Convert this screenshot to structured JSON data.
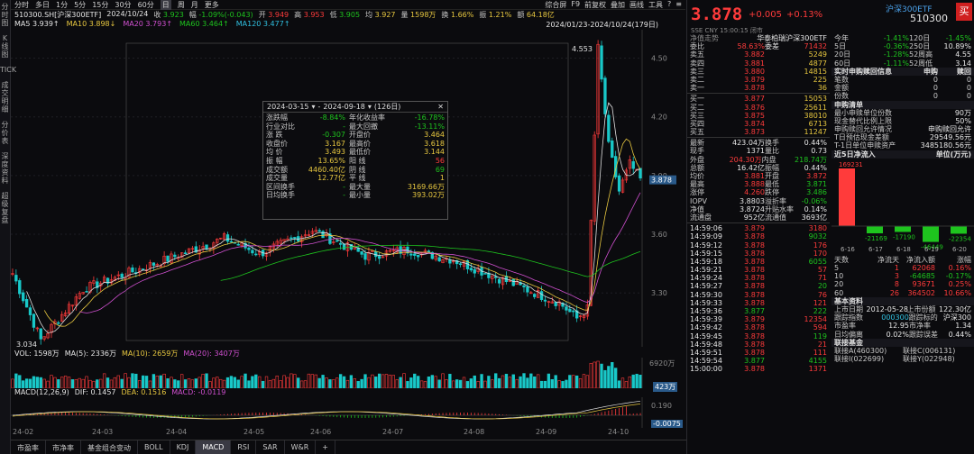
{
  "left_sidebar": [
    "分时图",
    "K线图",
    "TICK",
    "成交明细",
    "分价表",
    "深度资料",
    "超级复盘"
  ],
  "topbar": {
    "items": [
      "分时",
      "多日",
      "1分",
      "5分",
      "15分",
      "30分",
      "60分",
      "日",
      "周",
      "月",
      "更多"
    ],
    "active": "日",
    "right": [
      "综合屏",
      "F9",
      "前复权",
      "叠加",
      "画线",
      "工具",
      "?",
      "≡"
    ]
  },
  "info": {
    "code": "510300.SH[沪深300ETF]",
    "date": "2024/10/24",
    "open_lbl": "收",
    "open": "3.923",
    "chg_lbl": "幅",
    "chg": "-1.09%(-0.043)",
    "high_lbl": "开",
    "o": "3.949",
    "hi_lbl": "高",
    "hi": "3.953",
    "lo_lbl": "低",
    "lo": "3.905",
    "avg_lbl": "均",
    "avg": "3.927",
    "vol_lbl": "量",
    "vol": "1598万",
    "turn_lbl": "换",
    "turn": "1.66%",
    "amp_lbl": "振",
    "amp": "1.21%",
    "amt_lbl": "额",
    "amt": "64.18亿"
  },
  "ma": {
    "ma5": "MA5 3.939↑",
    "ma10": "MA10 3.898↓",
    "ma20": "MA20 3.793↑",
    "ma60": "MA60 3.464↑",
    "ma120": "MA120 3.477↑",
    "range": "2024/01/23-2024/10/24(179日)"
  },
  "price_axis": [
    "4.50",
    "4.20",
    "3.90",
    "3.60",
    "3.30"
  ],
  "last_price_tag": "3.878",
  "hi_label": "4.553",
  "lo_label": "3.034",
  "popup": {
    "start": "2024-03-15",
    "end": "2024-09-18",
    "days": "(126日)",
    "close": "✕",
    "rows": [
      [
        "涨跌幅",
        "-8.84%",
        "年化收益率",
        "-16.78%"
      ],
      [
        "行业对比",
        "-",
        "最大回撤",
        "-13.11%"
      ],
      [
        "涨 跌",
        "-0.307",
        "开盘价",
        "3.464"
      ],
      [
        "收盘价",
        "3.167",
        "最高价",
        "3.618"
      ],
      [
        "均 价",
        "3.493",
        "最低价",
        "3.144"
      ],
      [
        "振 幅",
        "13.65%",
        "阳 线",
        "56"
      ],
      [
        "成交额",
        "4460.40亿",
        "阴 线",
        "69"
      ],
      [
        "成交量",
        "12.77亿",
        "平 线",
        "1"
      ],
      [
        "区间换手",
        "-",
        "最大量",
        "3169.66万"
      ],
      [
        "日均换手",
        "-",
        "最小量",
        "393.02万"
      ]
    ]
  },
  "vol": {
    "label": "VOL: 1598万",
    "ma5": "MA(5): 2336万",
    "ma10": "MA(10): 2659万",
    "ma20": "MA(20): 3407万",
    "axis_top": "6920万",
    "axis_last": "423万"
  },
  "macd": {
    "label": "MACD(12,26,9)",
    "dif": "DIF: 0.1457",
    "dea": "DEA: 0.1516",
    "macd": "MACD: -0.0119",
    "axis_top": "0.190",
    "axis_last": "-0.0075"
  },
  "dates": [
    "24-02",
    "24-03",
    "24-04",
    "24-05",
    "24-06",
    "24-07",
    "24-08",
    "24-09",
    "24-10"
  ],
  "bottom_tabs": [
    "市盈率",
    "市净率",
    "基金组合变动",
    "BOLL",
    "KDJ",
    "MACD",
    "RSI",
    "SAR",
    "W&R",
    "+"
  ],
  "bottom_active": "MACD",
  "quote": {
    "price": "3.878",
    "chg": "+0.005",
    "pct": "+0.13%",
    "name": "沪深300ETF",
    "code": "510300",
    "buy_btn": "买",
    "sub": "SSE CNY 15:00:15 闭市"
  },
  "fund": {
    "label": "净值走势",
    "name": "华泰柏瑞沪深300ETF"
  },
  "webi": [
    [
      "委比",
      "58.63%",
      "委差",
      "71432"
    ]
  ],
  "asks": [
    [
      "卖五",
      "3.882",
      "5249"
    ],
    [
      "卖四",
      "3.881",
      "4877"
    ],
    [
      "卖三",
      "3.880",
      "14815"
    ],
    [
      "卖二",
      "3.879",
      "225"
    ],
    [
      "卖一",
      "3.878",
      "36"
    ]
  ],
  "bids": [
    [
      "买一",
      "3.877",
      "15053"
    ],
    [
      "买二",
      "3.876",
      "25611"
    ],
    [
      "买三",
      "3.875",
      "38010"
    ],
    [
      "买四",
      "3.874",
      "6713"
    ],
    [
      "买五",
      "3.873",
      "11247"
    ]
  ],
  "stats": [
    [
      "最新",
      "423.04万",
      "换手",
      "0.44%"
    ],
    [
      "现手",
      "1371",
      "量比",
      "0.73"
    ],
    [
      "外盘",
      "204.30万",
      "内盘",
      "218.74万"
    ],
    [
      "总额",
      "16.42亿",
      "振幅",
      "0.44%"
    ],
    [
      "均价",
      "3.881",
      "开盘",
      "3.872"
    ],
    [
      "最高",
      "3.888",
      "最低",
      "3.871"
    ],
    [
      "涨停",
      "4.260",
      "跌停",
      "3.486"
    ],
    [
      "IOPV",
      "3.8803",
      "溢折率",
      "-0.06%"
    ],
    [
      "净值",
      "3.8724",
      "升贴水率",
      "0.14%"
    ],
    [
      "流通盘",
      "952亿",
      "流通值",
      "3693亿"
    ]
  ],
  "ticks": [
    [
      "14:59:06",
      "3.879",
      "3180"
    ],
    [
      "14:59:09",
      "3.878",
      "9032"
    ],
    [
      "14:59:12",
      "3.878",
      "176"
    ],
    [
      "14:59:15",
      "3.878",
      "170"
    ],
    [
      "14:59:18",
      "3.878",
      "6055"
    ],
    [
      "14:59:21",
      "3.878",
      "57"
    ],
    [
      "14:59:24",
      "3.878",
      "71"
    ],
    [
      "14:59:27",
      "3.878",
      "20"
    ],
    [
      "14:59:30",
      "3.878",
      "76"
    ],
    [
      "14:59:33",
      "3.878",
      "121"
    ],
    [
      "14:59:36",
      "3.877",
      "222"
    ],
    [
      "14:59:39",
      "3.879",
      "12354"
    ],
    [
      "14:59:42",
      "3.878",
      "594"
    ],
    [
      "14:59:45",
      "3.878",
      "119"
    ],
    [
      "14:59:48",
      "3.878",
      "21"
    ],
    [
      "14:59:51",
      "3.878",
      "111"
    ],
    [
      "14:59:54",
      "3.877",
      "4155"
    ],
    [
      "15:00:00",
      "3.878",
      "1371"
    ]
  ],
  "returns": [
    [
      "今年",
      "-1.41%",
      "120日",
      "-1.45%"
    ],
    [
      "5日",
      "-0.36%",
      "250日",
      "10.89%"
    ],
    [
      "20日",
      "-1.28%",
      "52周高",
      "4.55"
    ],
    [
      "60日",
      "-1.11%",
      "52周低",
      "3.14"
    ]
  ],
  "subscribe": {
    "title": "实时申购赎回信息",
    "col1": "申购",
    "col2": "赎回",
    "rows": [
      [
        "笔数",
        "0",
        "0"
      ],
      [
        "金额",
        "0",
        "0"
      ],
      [
        "份数",
        "0",
        "0"
      ]
    ]
  },
  "purchase": {
    "title": "申购清单",
    "rows": [
      [
        "最小申赎单位份数",
        "90万"
      ],
      [
        "现金替代比例上限",
        "50%"
      ],
      [
        "申购赎回允许情况",
        "申购赎回允许"
      ],
      [
        "T日预估现金差额",
        "29549.56元"
      ],
      [
        "T-1日单位申赎资产",
        "3485180.56元"
      ]
    ]
  },
  "flow": {
    "title": "近5日净流入",
    "unit": "单位(万元)",
    "bars": [
      {
        "date": "6-16",
        "value": 169231
      },
      {
        "date": "6-17",
        "value": -21169
      },
      {
        "date": "6-18",
        "value": -17190
      },
      {
        "date": "6-19",
        "value": -46449
      },
      {
        "date": "6-20",
        "value": -22354
      }
    ]
  },
  "flow_table": {
    "head": [
      "天数",
      "净流天",
      "净流入额",
      "涨幅"
    ],
    "rows": [
      [
        "5",
        "1",
        "62068",
        "0.16%"
      ],
      [
        "10",
        "3",
        "-64685",
        "-0.17%"
      ],
      [
        "20",
        "8",
        "93671",
        "0.25%"
      ],
      [
        "60",
        "26",
        "364502",
        "10.66%"
      ]
    ]
  },
  "basic": {
    "title": "基本资料",
    "rows": [
      [
        "上市日期",
        "2012-05-28",
        "上市份额",
        "122.30亿"
      ],
      [
        "跟踪指数",
        "000300",
        "跟踪标的",
        "沪深300"
      ],
      [
        "市盈率",
        "12.95",
        "市净率",
        "1.34"
      ],
      [
        "日均偏离",
        "0.02%",
        "跟踪误差",
        "0.44%"
      ]
    ]
  },
  "linked": {
    "title": "联接基金",
    "rows": [
      [
        "联接A(460300)",
        "联接C(006131)"
      ],
      [
        "联接I(022699)",
        "联接Y(022948)"
      ]
    ]
  }
}
